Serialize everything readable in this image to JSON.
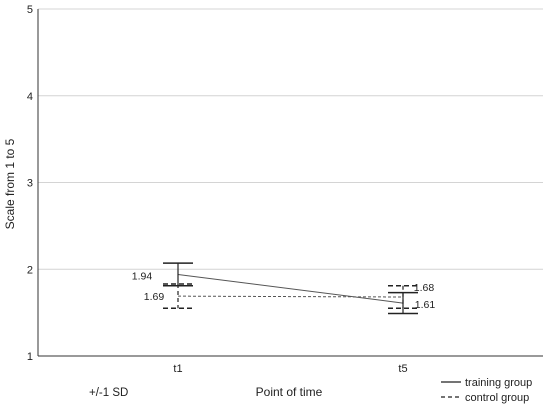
{
  "chart_data": {
    "type": "line",
    "x": [
      "t1",
      "t5"
    ],
    "ylim": [
      1,
      5
    ],
    "yticks": [
      "1",
      "2",
      "3",
      "4",
      "5"
    ],
    "grid": true,
    "xlabel": "Point of time",
    "ylabel": "Scale from 1 to 5",
    "error_bar_note": "+/-1 SD",
    "legend_position": "bottom-right",
    "series": [
      {
        "name": "training group",
        "line_style": "solid",
        "color": "#555555",
        "values": [
          1.94,
          1.61
        ],
        "labels": [
          "1.94",
          "1.61"
        ],
        "error_low": [
          1.81,
          1.49
        ],
        "error_high": [
          2.07,
          1.73
        ]
      },
      {
        "name": "control group",
        "line_style": "dashed",
        "color": "#555555",
        "values": [
          1.69,
          1.68
        ],
        "labels": [
          "1.69",
          "1.68"
        ],
        "error_low": [
          1.55,
          1.55
        ],
        "error_high": [
          1.83,
          1.81
        ]
      }
    ]
  }
}
